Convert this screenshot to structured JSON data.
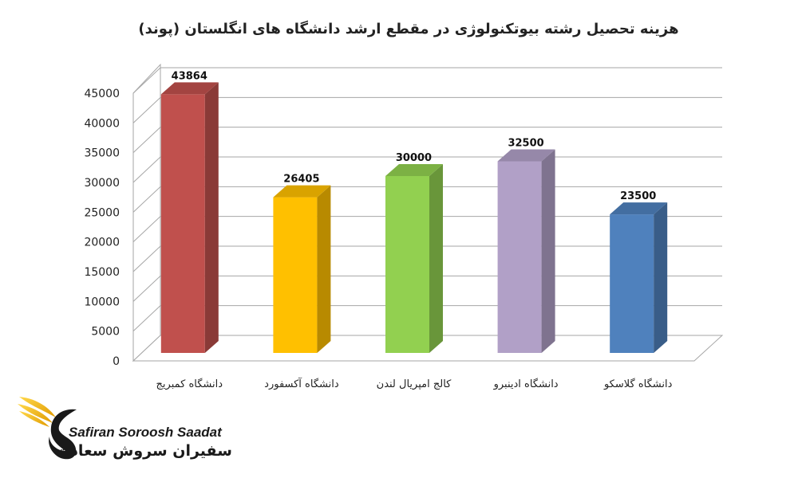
{
  "chart_data": {
    "type": "bar",
    "title": "هزینه تحصیل رشته بیوتکنولوژی در مقطع ارشد دانشگاه های انگلستان (پوند)",
    "categories": [
      "دانشگاه کمبریج",
      "دانشگاه آکسفورد",
      "کالج امپریال لندن",
      "دانشگاه ادینبرو",
      "دانشگاه گلاسکو"
    ],
    "values": [
      43864,
      26405,
      30000,
      32500,
      23500
    ],
    "colors": [
      "#c0504d",
      "#ffc000",
      "#92d050",
      "#b1a0c7",
      "#4f81bd"
    ],
    "ylim": [
      0,
      45000
    ],
    "yticks": [
      0,
      5000,
      10000,
      15000,
      20000,
      25000,
      30000,
      35000,
      40000,
      45000
    ],
    "grid": true,
    "style": "3d-column"
  },
  "logo": {
    "name_en": "Safiran Soroosh Saadat",
    "name_fa": "سفیران سروش سعادت",
    "accent_color": "#f5b800"
  }
}
